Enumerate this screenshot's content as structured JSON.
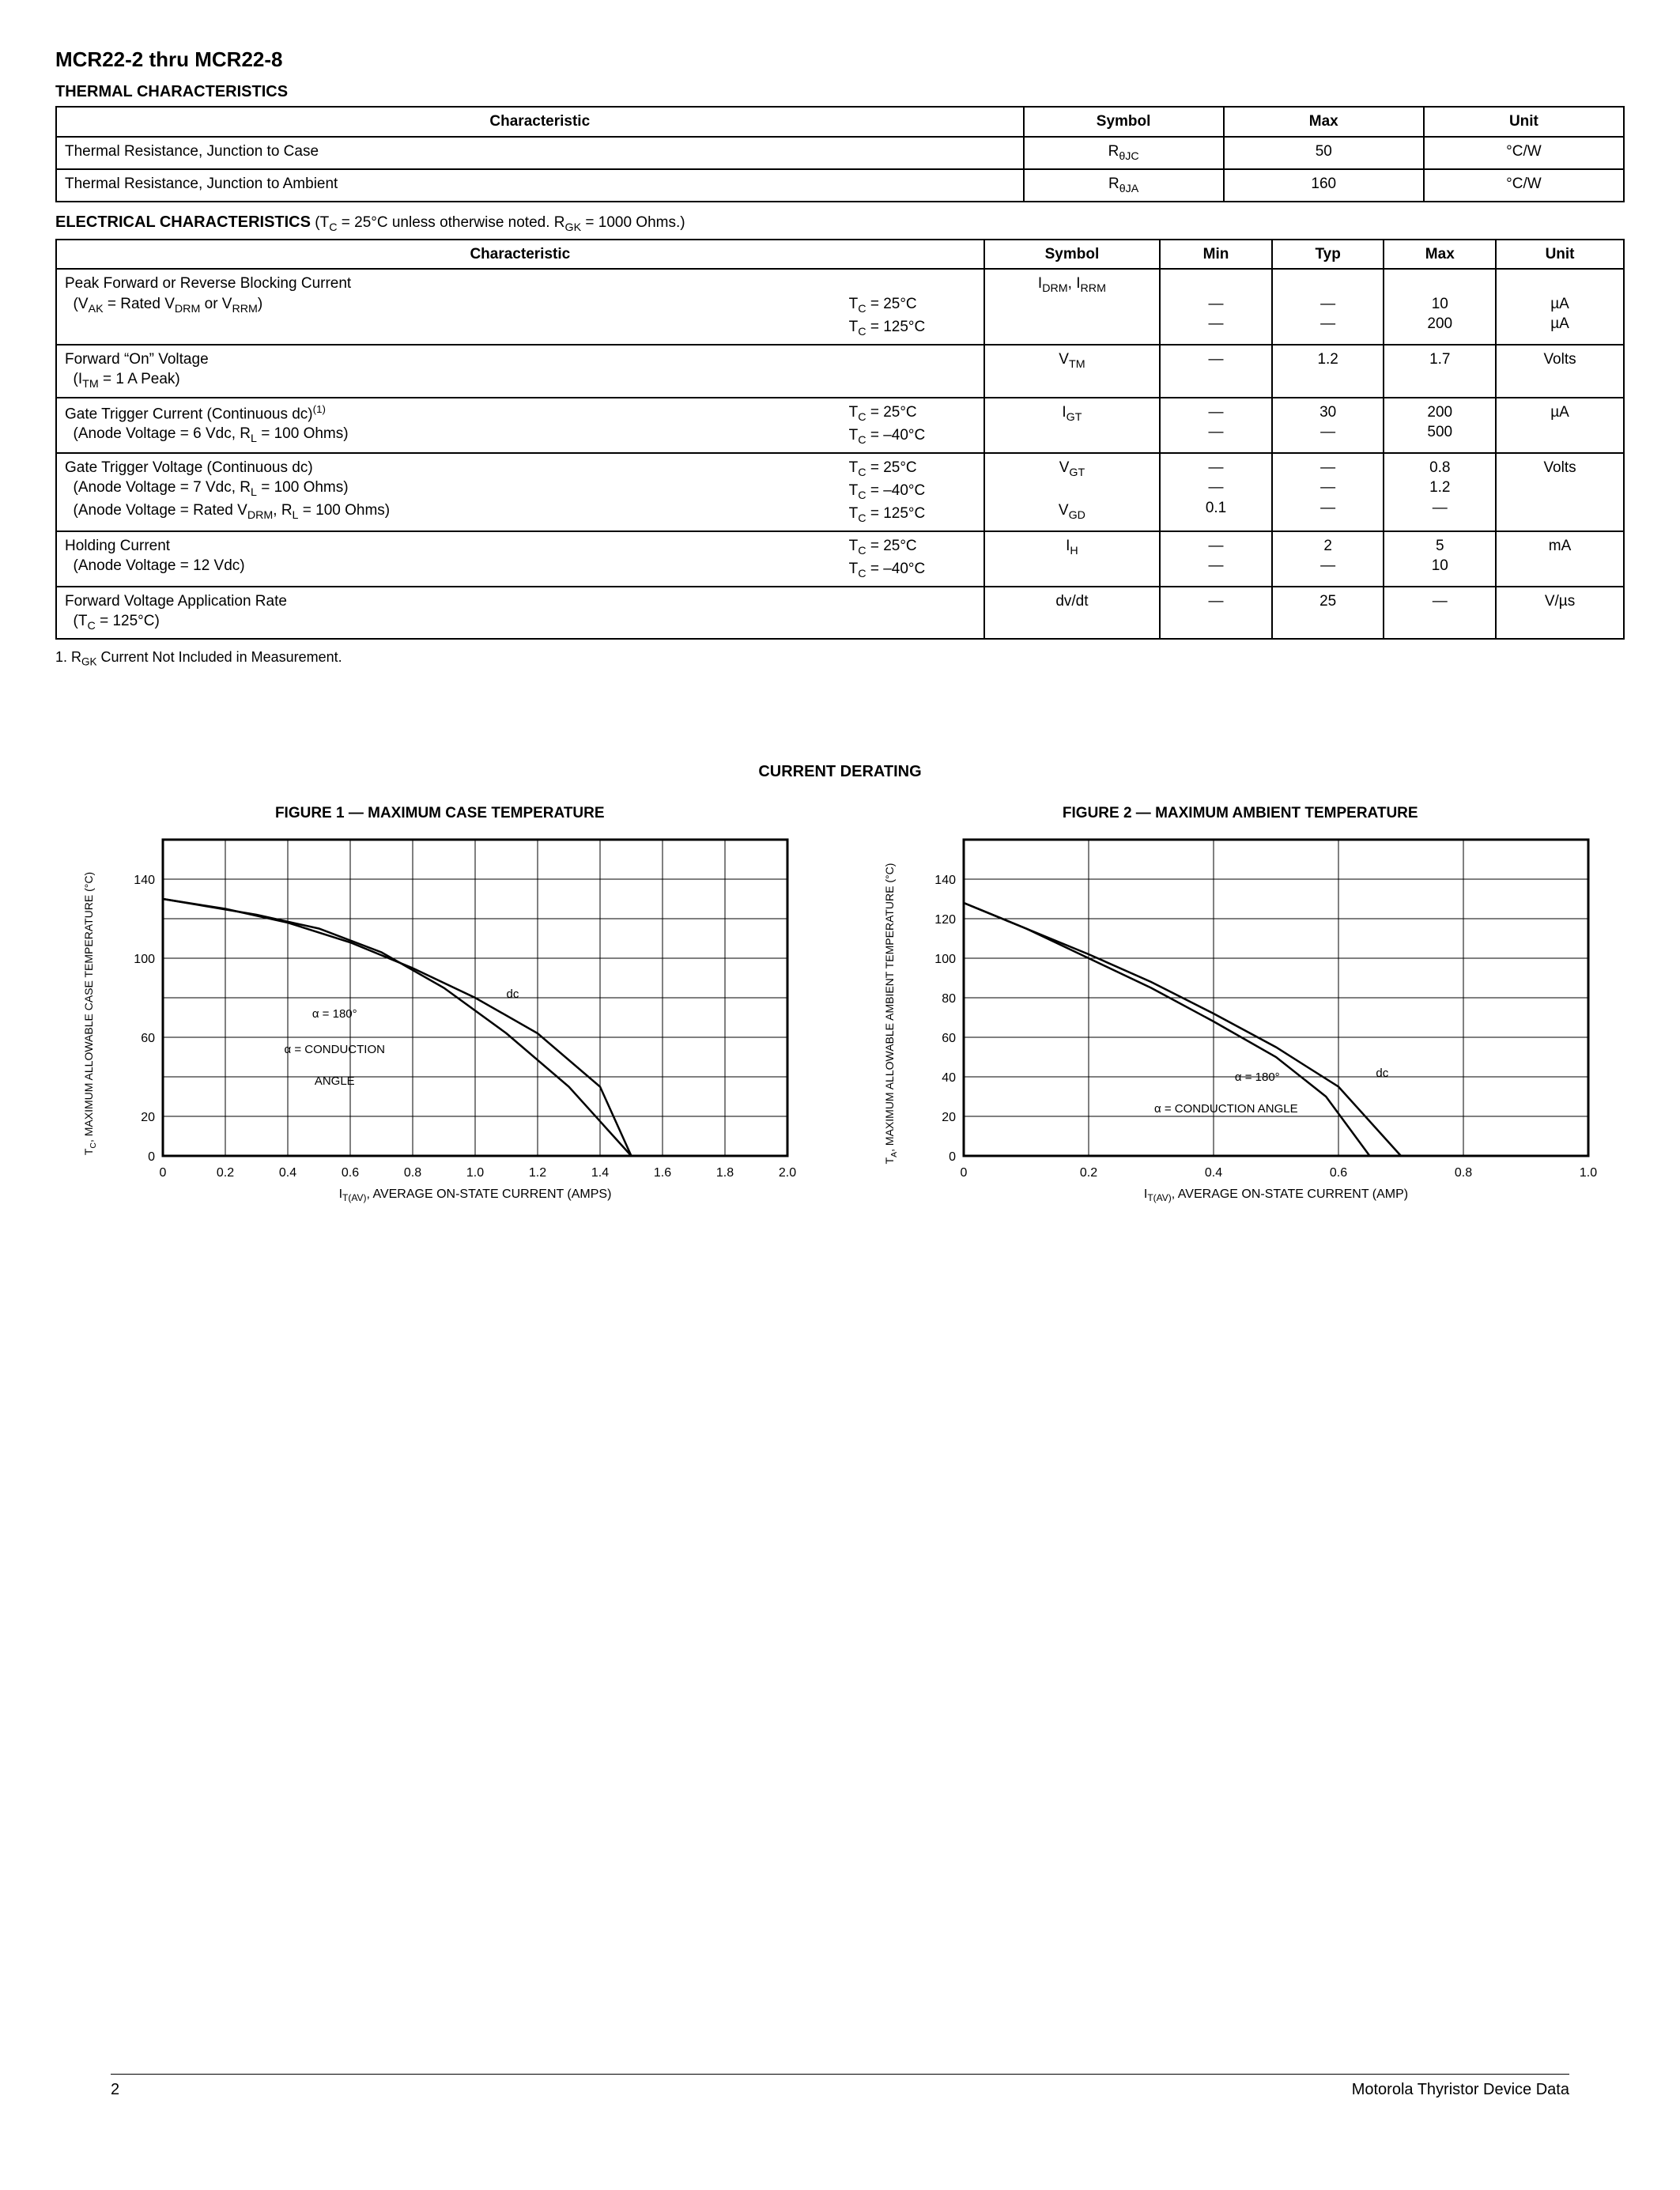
{
  "header": {
    "title": "MCR22-2 thru MCR22-8"
  },
  "thermal": {
    "section_title": "THERMAL CHARACTERISTICS",
    "headers": {
      "char": "Characteristic",
      "symbol": "Symbol",
      "max": "Max",
      "unit": "Unit"
    },
    "rows": [
      {
        "char": "Thermal Resistance, Junction to Case",
        "symbol_html": "R<sub>θJC</sub>",
        "max": "50",
        "unit": "°C/W"
      },
      {
        "char": "Thermal Resistance, Junction to Ambient",
        "symbol_html": "R<sub>θJA</sub>",
        "max": "160",
        "unit": "°C/W"
      }
    ]
  },
  "electrical": {
    "section_title": "ELECTRICAL CHARACTERISTICS",
    "section_note_html": " (T<sub>C</sub> = 25°C unless otherwise noted. R<sub>GK</sub> = 1000 Ohms.)",
    "headers": {
      "char": "Characteristic",
      "symbol": "Symbol",
      "min": "Min",
      "typ": "Typ",
      "max": "Max",
      "unit": "Unit"
    },
    "rows": [
      {
        "char_html": "Peak Forward or Reverse Blocking Current<br>&nbsp;&nbsp;(V<sub>AK</sub> = Rated V<sub>DRM</sub> or V<sub>RRM</sub>)",
        "cond_html": "<br>T<sub>C</sub> = 25°C<br>T<sub>C</sub> = 125°C",
        "symbol_html": "I<sub>DRM</sub>, I<sub>RRM</sub>",
        "min_html": "<br>—<br>—",
        "typ_html": "<br>—<br>—",
        "max_html": "<br>10<br>200",
        "unit_html": "<br>µA<br>µA"
      },
      {
        "char_html": "Forward &ldquo;On&rdquo; Voltage<br>&nbsp;&nbsp;(I<sub>TM</sub> = 1 A Peak)",
        "cond_html": "",
        "symbol_html": "V<sub>TM</sub>",
        "min_html": "—",
        "typ_html": "1.2",
        "max_html": "1.7",
        "unit_html": "Volts"
      },
      {
        "char_html": "Gate Trigger Current (Continuous dc)<sup>(1)</sup><br>&nbsp;&nbsp;(Anode Voltage = 6 Vdc, R<sub>L</sub> = 100 Ohms)",
        "cond_html": "T<sub>C</sub> = 25°C<br>T<sub>C</sub> = –40°C",
        "symbol_html": "I<sub>GT</sub>",
        "min_html": "—<br>—",
        "typ_html": "30<br>—",
        "max_html": "200<br>500",
        "unit_html": "µA"
      },
      {
        "char_html": "Gate Trigger Voltage (Continuous dc)<br>&nbsp;&nbsp;(Anode Voltage = 7 Vdc, R<sub>L</sub> = 100 Ohms)<br>&nbsp;&nbsp;(Anode Voltage = Rated V<sub>DRM</sub>, R<sub>L</sub> = 100 Ohms)",
        "cond_html": "T<sub>C</sub> = 25°C<br>T<sub>C</sub> = –40°C<br>T<sub>C</sub> = 125°C",
        "symbol_html": "V<sub>GT</sub><br><br>V<sub>GD</sub>",
        "min_html": "—<br>—<br>0.1",
        "typ_html": "—<br>—<br>—",
        "max_html": "0.8<br>1.2<br>—",
        "unit_html": "Volts"
      },
      {
        "char_html": "Holding Current<br>&nbsp;&nbsp;(Anode Voltage = 12 Vdc)",
        "cond_html": "T<sub>C</sub> = 25°C<br>T<sub>C</sub> = –40°C",
        "symbol_html": "I<sub>H</sub>",
        "min_html": "—<br>—",
        "typ_html": "2<br>—",
        "max_html": "5<br>10",
        "unit_html": "mA"
      },
      {
        "char_html": "Forward Voltage Application Rate<br>&nbsp;&nbsp;(T<sub>C</sub> = 125°C)",
        "cond_html": "",
        "symbol_html": "dv/dt",
        "min_html": "—",
        "typ_html": "25",
        "max_html": "—",
        "unit_html": "V/µs"
      }
    ],
    "footnote_html": "1. R<sub>GK</sub> Current Not Included in Measurement."
  },
  "charts": {
    "section_title": "CURRENT DERATING",
    "fig1": {
      "title": "FIGURE 1 — MAXIMUM CASE TEMPERATURE",
      "type": "line",
      "xlabel_html": "I<sub>T(AV)</sub>, AVERAGE ON-STATE CURRENT (AMPS)",
      "ylabel_html": "T<sub>C</sub>, MAXIMUM ALLOWABLE CASE TEMPERATURE (°C)",
      "xlim": [
        0,
        2.0
      ],
      "xtick_step": 0.2,
      "ylim": [
        0,
        160
      ],
      "yticks": [
        0,
        20,
        60,
        100,
        140
      ],
      "grid_color": "#000000",
      "line_color": "#000000",
      "background_color": "#ffffff",
      "xtick_labels": [
        "0",
        "0.2",
        "0.4",
        "0.6",
        "0.8",
        "1.0",
        "1.2",
        "1.4",
        "1.6",
        "1.8",
        "2.0"
      ],
      "curves": {
        "alpha180": [
          [
            0,
            130
          ],
          [
            0.2,
            125
          ],
          [
            0.4,
            118
          ],
          [
            0.6,
            108
          ],
          [
            0.8,
            95
          ],
          [
            1.0,
            80
          ],
          [
            1.2,
            62
          ],
          [
            1.4,
            35
          ],
          [
            1.5,
            0
          ]
        ],
        "dc": [
          [
            0,
            130
          ],
          [
            0.3,
            122
          ],
          [
            0.5,
            115
          ],
          [
            0.7,
            103
          ],
          [
            0.9,
            85
          ],
          [
            1.1,
            62
          ],
          [
            1.3,
            35
          ],
          [
            1.5,
            0
          ]
        ]
      },
      "annotations": {
        "dc_label": "dc",
        "alpha_label_html": "α = 180°",
        "cond_label_html": "α = CONDUCTION<br>ANGLE"
      }
    },
    "fig2": {
      "title": "FIGURE 2 — MAXIMUM AMBIENT TEMPERATURE",
      "type": "line",
      "xlabel_html": "I<sub>T(AV)</sub>, AVERAGE ON-STATE CURRENT (AMP)",
      "ylabel_html": "T<sub>A</sub>, MAXIMUM ALLOWABLE AMBIENT TEMPERATURE (°C)",
      "xlim": [
        0,
        1.0
      ],
      "xtick_step": 0.2,
      "ylim": [
        0,
        160
      ],
      "yticks": [
        0,
        20,
        40,
        60,
        80,
        100,
        120,
        140
      ],
      "grid_color": "#000000",
      "line_color": "#000000",
      "background_color": "#ffffff",
      "xtick_labels": [
        "0",
        "0.2",
        "0.4",
        "0.6",
        "0.8",
        "1.0"
      ],
      "curves": {
        "alpha180": [
          [
            0,
            128
          ],
          [
            0.1,
            115
          ],
          [
            0.2,
            100
          ],
          [
            0.3,
            85
          ],
          [
            0.4,
            68
          ],
          [
            0.5,
            50
          ],
          [
            0.58,
            30
          ],
          [
            0.65,
            0
          ]
        ],
        "dc": [
          [
            0,
            128
          ],
          [
            0.1,
            115
          ],
          [
            0.2,
            102
          ],
          [
            0.3,
            88
          ],
          [
            0.4,
            72
          ],
          [
            0.5,
            55
          ],
          [
            0.6,
            35
          ],
          [
            0.7,
            0
          ]
        ]
      },
      "annotations": {
        "dc_label": "dc",
        "alpha_label_html": "α = 180°",
        "cond_label_html": "α = CONDUCTION ANGLE"
      }
    }
  },
  "footer": {
    "page_num": "2",
    "right": "Motorola Thyristor Device Data"
  }
}
